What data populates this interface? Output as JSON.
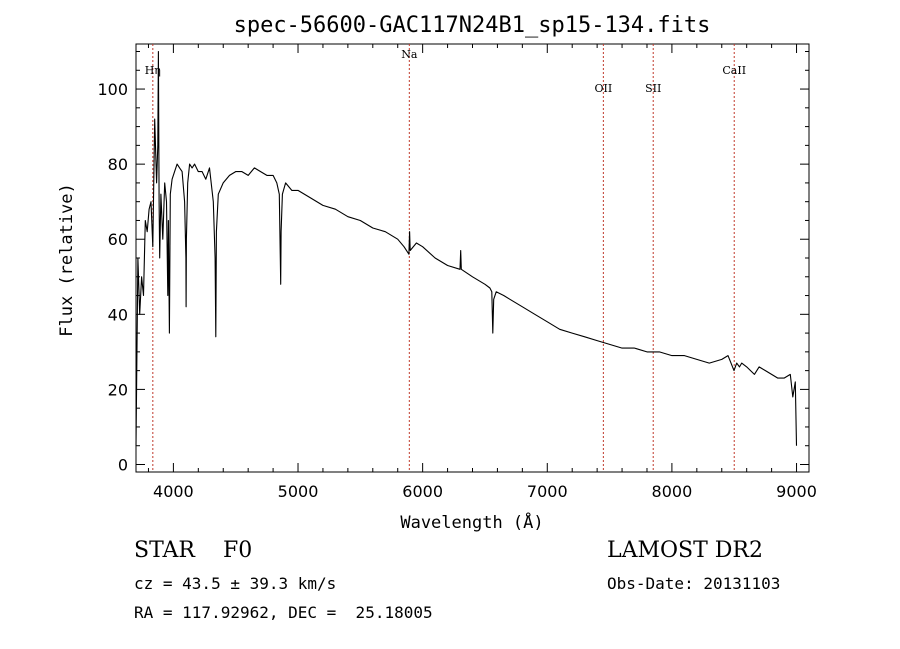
{
  "chart_data": {
    "type": "line",
    "title": "spec-56600-GAC117N24B1_sp15-134.fits",
    "xlabel": "Wavelength (Å)",
    "ylabel": "Flux (relative)",
    "xlim": [
      3700,
      9100
    ],
    "ylim": [
      -2,
      112
    ],
    "xticks": [
      4000,
      5000,
      6000,
      7000,
      8000,
      9000
    ],
    "yticks": [
      0,
      20,
      40,
      60,
      80,
      100
    ],
    "grid": false,
    "lines": [
      {
        "label": "Hη",
        "x": 3835
      },
      {
        "label": "Na",
        "x": 5893
      },
      {
        "label": "OII",
        "x": 7450
      },
      {
        "label": "SII",
        "x": 7850
      },
      {
        "label": "CaII",
        "x": 8500
      }
    ],
    "series": [
      {
        "x": [
          3700,
          3715,
          3730,
          3745,
          3760,
          3775,
          3790,
          3805,
          3820,
          3835,
          3850,
          3865,
          3875,
          3880,
          3885,
          3890,
          3900,
          3915,
          3930,
          3945,
          3955,
          3960,
          3968,
          3975,
          3990,
          4010,
          4030,
          4050,
          4070,
          4090,
          4100,
          4102,
          4104,
          4115,
          4130,
          4150,
          4170,
          4200,
          4230,
          4260,
          4290,
          4320,
          4335,
          4340,
          4345,
          4360,
          4400,
          4450,
          4500,
          4550,
          4600,
          4650,
          4700,
          4750,
          4800,
          4830,
          4850,
          4858,
          4861,
          4864,
          4875,
          4900,
          4950,
          5000,
          5100,
          5200,
          5300,
          5400,
          5500,
          5600,
          5700,
          5800,
          5850,
          5890,
          5895,
          5900,
          5950,
          6000,
          6100,
          6200,
          6300,
          6305,
          6310,
          6400,
          6500,
          6540,
          6555,
          6563,
          6570,
          6590,
          6650,
          6700,
          6800,
          6900,
          7000,
          7100,
          7200,
          7300,
          7400,
          7500,
          7600,
          7700,
          7800,
          7900,
          8000,
          8100,
          8200,
          8300,
          8400,
          8450,
          8498,
          8520,
          8542,
          8560,
          8600,
          8662,
          8700,
          8750,
          8800,
          8850,
          8900,
          8950,
          8970,
          8990,
          9000
        ],
        "y": [
          5,
          55,
          40,
          50,
          45,
          65,
          62,
          68,
          70,
          58,
          92,
          75,
          85,
          110,
          70,
          55,
          72,
          60,
          75,
          70,
          45,
          65,
          35,
          72,
          76,
          78,
          80,
          79,
          78,
          70,
          55,
          42,
          60,
          75,
          80,
          79,
          80,
          78,
          78,
          76,
          79,
          70,
          55,
          34,
          62,
          72,
          75,
          77,
          78,
          78,
          77,
          79,
          78,
          77,
          77,
          75,
          72,
          55,
          48,
          62,
          72,
          75,
          73,
          73,
          71,
          69,
          68,
          66,
          65,
          63,
          62,
          60,
          58,
          56,
          62,
          57,
          59,
          58,
          55,
          53,
          52,
          57,
          52,
          50,
          48,
          47,
          46,
          35,
          44,
          46,
          45,
          44,
          42,
          40,
          38,
          36,
          35,
          34,
          33,
          32,
          31,
          31,
          30,
          30,
          29,
          29,
          28,
          27,
          28,
          29,
          25,
          27,
          26,
          27,
          26,
          24,
          26,
          25,
          24,
          23,
          23,
          24,
          18,
          22,
          5
        ]
      }
    ]
  },
  "info": {
    "class_line": "STAR    F0",
    "survey": "LAMOST DR2",
    "cz": "cz = 43.5 ± 39.3 km/s",
    "obs_date": "Obs-Date: 20131103",
    "radec": "RA = 117.92962, DEC =  25.18005"
  }
}
